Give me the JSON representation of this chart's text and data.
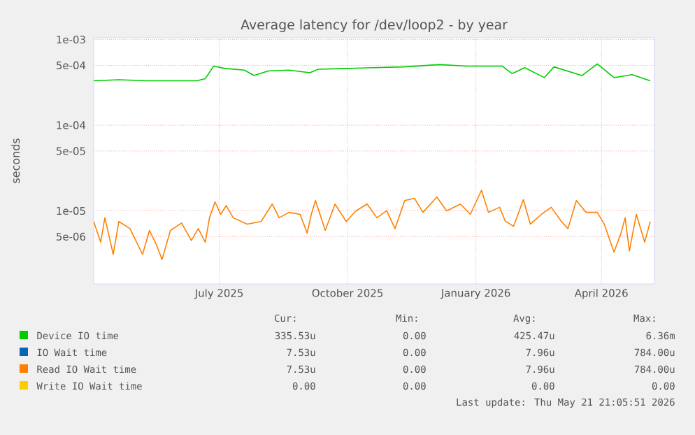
{
  "chart_data": {
    "type": "line",
    "title": "Average latency for /dev/loop2 - by year",
    "ylabel": "seconds",
    "log": "y",
    "grid": true,
    "legend": "bottom",
    "marker": "none",
    "line_style": "solid",
    "xlim": [
      "2025-04-02",
      "2026-05-09"
    ],
    "xticks": [
      {
        "value": "2025-07-01",
        "label": "July 2025"
      },
      {
        "value": "2025-10-01",
        "label": "October 2025"
      },
      {
        "value": "2026-01-01",
        "label": "January 2026"
      },
      {
        "value": "2026-04-01",
        "label": "April 2026"
      }
    ],
    "ylim": [
      1.4e-06,
      0.00105
    ],
    "yticks": [
      {
        "value": 5e-06,
        "label": "5e-06"
      },
      {
        "value": 1e-05,
        "label": "1e-05"
      },
      {
        "value": 5e-05,
        "label": "5e-05"
      },
      {
        "value": 0.0001,
        "label": "1e-04"
      },
      {
        "value": 0.0005,
        "label": "5e-04"
      },
      {
        "value": 0.001,
        "label": "1e-03"
      }
    ],
    "series": [
      {
        "name": "Device IO time",
        "color": "#00cc00",
        "x": [
          "2025-04-02",
          "2025-04-20",
          "2025-05-10",
          "2025-06-01",
          "2025-06-15",
          "2025-06-21",
          "2025-06-27",
          "2025-07-05",
          "2025-07-19",
          "2025-07-26",
          "2025-08-05",
          "2025-08-20",
          "2025-09-04",
          "2025-09-10",
          "2025-10-01",
          "2025-10-20",
          "2025-11-10",
          "2025-12-06",
          "2025-12-25",
          "2026-01-20",
          "2026-01-27",
          "2026-02-05",
          "2026-02-19",
          "2026-02-26",
          "2026-03-18",
          "2026-03-29",
          "2026-04-10",
          "2026-04-23",
          "2026-05-06"
        ],
        "values": [
          0.00033,
          0.00034,
          0.00033,
          0.00033,
          0.00033,
          0.00035,
          0.00049,
          0.00046,
          0.00044,
          0.00038,
          0.00043,
          0.00044,
          0.00041,
          0.00045,
          0.00046,
          0.00047,
          0.00048,
          0.00051,
          0.00049,
          0.00049,
          0.0004,
          0.00047,
          0.00036,
          0.00048,
          0.00038,
          0.00052,
          0.00036,
          0.00039,
          0.00033
        ]
      },
      {
        "name": "IO Wait time",
        "color": "#0066b3",
        "values": [
          null
        ]
      },
      {
        "name": "Read IO Wait time",
        "color": "#ff8000",
        "x": [
          "2025-04-02",
          "2025-04-07",
          "2025-04-10",
          "2025-04-16",
          "2025-04-20",
          "2025-04-28",
          "2025-05-07",
          "2025-05-12",
          "2025-05-17",
          "2025-05-21",
          "2025-05-27",
          "2025-06-04",
          "2025-06-11",
          "2025-06-16",
          "2025-06-21",
          "2025-06-24",
          "2025-06-28",
          "2025-07-02",
          "2025-07-06",
          "2025-07-11",
          "2025-07-21",
          "2025-07-31",
          "2025-08-08",
          "2025-08-13",
          "2025-08-20",
          "2025-08-28",
          "2025-09-02",
          "2025-09-05",
          "2025-09-08",
          "2025-09-15",
          "2025-09-22",
          "2025-09-30",
          "2025-10-07",
          "2025-10-15",
          "2025-10-22",
          "2025-10-29",
          "2025-11-04",
          "2025-11-11",
          "2025-11-18",
          "2025-11-24",
          "2025-12-04",
          "2025-12-11",
          "2025-12-21",
          "2025-12-28",
          "2026-01-05",
          "2026-01-10",
          "2026-01-18",
          "2026-01-22",
          "2026-01-28",
          "2026-02-04",
          "2026-02-09",
          "2026-02-17",
          "2026-02-24",
          "2026-03-03",
          "2026-03-08",
          "2026-03-14",
          "2026-03-21",
          "2026-03-29",
          "2026-04-03",
          "2026-04-10",
          "2026-04-15",
          "2026-04-18",
          "2026-04-21",
          "2026-04-26",
          "2026-05-02",
          "2026-05-06"
        ],
        "values": [
          7.5e-06,
          4.3e-06,
          8.3e-06,
          3.1e-06,
          7.5e-06,
          6.2e-06,
          3.1e-06,
          5.9e-06,
          4e-06,
          2.7e-06,
          5.9e-06,
          7.2e-06,
          4.5e-06,
          6.2e-06,
          4.3e-06,
          8.3e-06,
          1.27e-05,
          9.1e-06,
          1.15e-05,
          8.3e-06,
          7e-06,
          7.5e-06,
          1.2e-05,
          8.3e-06,
          9.6e-06,
          9.1e-06,
          5.5e-06,
          9.1e-06,
          1.32e-05,
          5.9e-06,
          1.2e-05,
          7.5e-06,
          1e-05,
          1.2e-05,
          8.3e-06,
          1e-05,
          6.2e-06,
          1.32e-05,
          1.4e-05,
          9.6e-06,
          1.45e-05,
          1e-05,
          1.2e-05,
          9.1e-06,
          1.74e-05,
          9.6e-06,
          1.1e-05,
          7.6e-06,
          6.6e-06,
          1.35e-05,
          7e-06,
          9.1e-06,
          1.1e-05,
          7.6e-06,
          6.2e-06,
          1.32e-05,
          9.6e-06,
          9.6e-06,
          7e-06,
          3.3e-06,
          5.5e-06,
          8.3e-06,
          3.4e-06,
          9.1e-06,
          4.3e-06,
          7.5e-06
        ]
      },
      {
        "name": "Write IO Wait time",
        "color": "#ffcc00",
        "values": [
          null
        ]
      }
    ],
    "annotations": [
      "Cur:",
      "Min:",
      "Avg:",
      "Max:",
      "335.53u",
      "0.00",
      "425.47u",
      "6.36m",
      "7.53u",
      "0.00",
      "7.96u",
      "784.00u",
      "7.53u",
      "0.00",
      "7.96u",
      "784.00u",
      "0.00",
      "0.00",
      "0.00",
      "0.00",
      "Last update: Thu May 21 21:05:51 2026"
    ]
  }
}
